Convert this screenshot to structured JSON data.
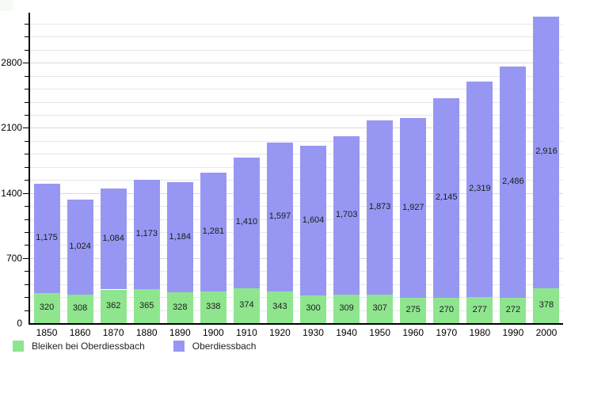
{
  "chart_data": {
    "type": "bar",
    "stacked": true,
    "title": "",
    "xlabel": "",
    "ylabel": "",
    "categories": [
      "1850",
      "1860",
      "1870",
      "1880",
      "1890",
      "1900",
      "1910",
      "1920",
      "1930",
      "1940",
      "1950",
      "1960",
      "1970",
      "1980",
      "1990",
      "2000"
    ],
    "series": [
      {
        "name": "Bleiken bei Oberdiessbach",
        "color": "#8ee58e",
        "values": [
          320,
          308,
          362,
          365,
          328,
          338,
          374,
          343,
          300,
          309,
          307,
          275,
          270,
          277,
          272,
          378
        ]
      },
      {
        "name": "Oberdiessbach",
        "color": "#9797f3",
        "values": [
          1175,
          1024,
          1084,
          1173,
          1184,
          1281,
          1410,
          1597,
          1604,
          1703,
          1873,
          1927,
          2145,
          2319,
          2486,
          2916
        ]
      }
    ],
    "yticks": [
      0,
      700,
      1400,
      2100,
      2800
    ],
    "minor_tick_step": 140,
    "ylim": [
      0,
      3330
    ],
    "grid": true,
    "legend_position": "bottom-left",
    "value_labels": true
  },
  "legend": {
    "items": [
      {
        "label": "Bleiken bei Oberdiessbach",
        "color": "#8ee58e"
      },
      {
        "label": "Oberdiessbach",
        "color": "#9797f3"
      }
    ]
  },
  "colors": {
    "background": "#ffffff",
    "axis": "#000000",
    "grid_minor": "#e7e7e7",
    "grid_major": "#dadada",
    "label_text": "#1b1b1b"
  }
}
